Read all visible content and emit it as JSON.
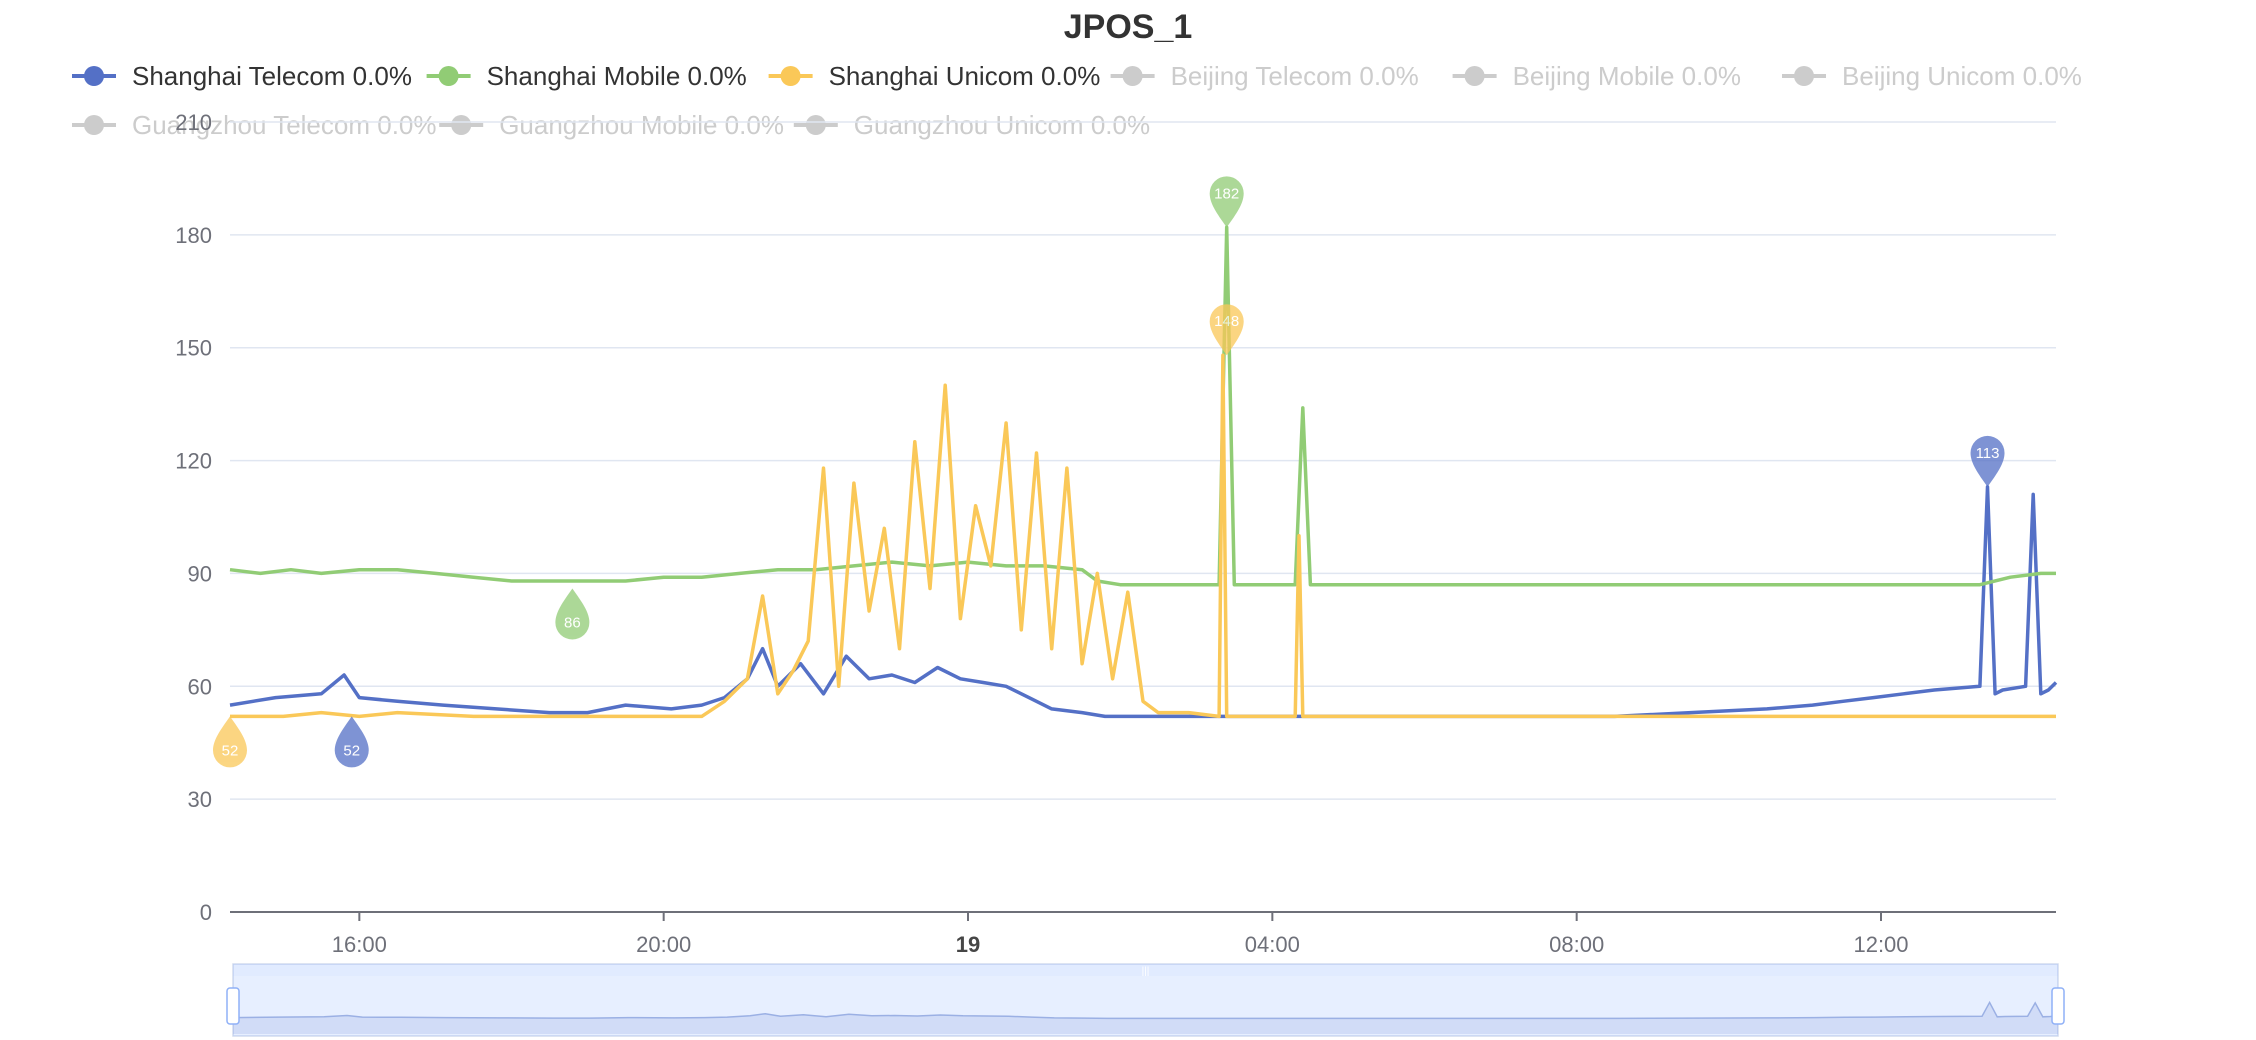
{
  "chart_data": {
    "type": "line",
    "title": "JPOS_1",
    "legend": [
      {
        "name": "Shanghai Telecom 0.0%",
        "color": "#5470c6",
        "active": true
      },
      {
        "name": "Shanghai Mobile 0.0%",
        "color": "#91cc75",
        "active": true
      },
      {
        "name": "Shanghai Unicom 0.0%",
        "color": "#fac858",
        "active": true
      },
      {
        "name": "Beijing Telecom 0.0%",
        "color": "#cccccc",
        "active": false
      },
      {
        "name": "Beijing Mobile 0.0%",
        "color": "#cccccc",
        "active": false
      },
      {
        "name": "Beijing Unicom 0.0%",
        "color": "#cccccc",
        "active": false
      },
      {
        "name": "Guangzhou Telecom 0.0%",
        "color": "#cccccc",
        "active": false
      },
      {
        "name": "Guangzhou Mobile 0.0%",
        "color": "#cccccc",
        "active": false
      },
      {
        "name": "Guangzhou Unicom 0.0%",
        "color": "#cccccc",
        "active": false
      }
    ],
    "y_axis": {
      "min": 0,
      "max": 210,
      "ticks": [
        "0",
        "30",
        "60",
        "90",
        "120",
        "150",
        "180",
        "210"
      ]
    },
    "x_axis": {
      "start_hour": 13.8,
      "end_hour": 37.8,
      "ticks": [
        {
          "hour": 15.5,
          "label": "16:00",
          "bold": false
        },
        {
          "hour": 19.5,
          "label": "20:00",
          "bold": false
        },
        {
          "hour": 23.5,
          "label": "19",
          "bold": true
        },
        {
          "hour": 27.5,
          "label": "04:00",
          "bold": false
        },
        {
          "hour": 31.5,
          "label": "08:00",
          "bold": false
        },
        {
          "hour": 35.5,
          "label": "12:00",
          "bold": false
        }
      ]
    },
    "series": [
      {
        "name": "Shanghai Telecom",
        "color": "#5470c6",
        "x": [
          13.8,
          14.4,
          15.0,
          15.3,
          15.5,
          16.0,
          16.6,
          17.3,
          18.0,
          18.5,
          19.0,
          19.6,
          20.0,
          20.3,
          20.6,
          20.8,
          21.0,
          21.3,
          21.6,
          21.9,
          22.2,
          22.5,
          22.8,
          23.1,
          23.4,
          23.7,
          24.0,
          24.3,
          24.6,
          25.0,
          25.3,
          25.6,
          26.0,
          26.6,
          27.2,
          28.0,
          29.0,
          30.0,
          31.0,
          32.0,
          33.0,
          34.0,
          34.6,
          35.0,
          35.4,
          35.8,
          36.2,
          36.8,
          36.9,
          37.0,
          37.1,
          37.4,
          37.5,
          37.6,
          37.7,
          37.8
        ],
        "y": [
          55,
          57,
          58,
          63,
          57,
          56,
          55,
          54,
          53,
          53,
          55,
          54,
          55,
          57,
          62,
          70,
          60,
          66,
          58,
          68,
          62,
          63,
          61,
          65,
          62,
          61,
          60,
          57,
          54,
          53,
          52,
          52,
          52,
          52,
          52,
          52,
          52,
          52,
          52,
          52,
          53,
          54,
          55,
          56,
          57,
          58,
          59,
          60,
          113,
          58,
          59,
          60,
          111,
          58,
          59,
          61
        ]
      },
      {
        "name": "Shanghai Mobile",
        "color": "#91cc75",
        "x": [
          13.8,
          14.2,
          14.6,
          15.0,
          15.5,
          16.0,
          16.5,
          17.0,
          17.5,
          18.0,
          18.5,
          19.0,
          19.5,
          20.0,
          20.5,
          21.0,
          21.5,
          22.0,
          22.5,
          23.0,
          23.5,
          24.0,
          24.5,
          25.0,
          25.2,
          25.5,
          26.0,
          26.8,
          26.9,
          27.0,
          27.8,
          27.9,
          28.0,
          29.0,
          30.0,
          31.0,
          32.0,
          33.0,
          34.0,
          35.0,
          36.0,
          36.8,
          37.2,
          37.6,
          37.8
        ],
        "y": [
          91,
          90,
          91,
          90,
          91,
          91,
          90,
          89,
          88,
          88,
          88,
          88,
          89,
          89,
          90,
          91,
          91,
          92,
          93,
          92,
          93,
          92,
          92,
          91,
          88,
          87,
          87,
          87,
          182,
          87,
          87,
          134,
          87,
          87,
          87,
          87,
          87,
          87,
          87,
          87,
          87,
          87,
          89,
          90,
          90
        ]
      },
      {
        "name": "Shanghai Unicom",
        "color": "#fac858",
        "x": [
          13.8,
          14.5,
          15.0,
          15.5,
          16.0,
          17.0,
          18.0,
          19.0,
          20.0,
          20.3,
          20.6,
          20.8,
          21.0,
          21.2,
          21.4,
          21.6,
          21.8,
          22.0,
          22.2,
          22.4,
          22.6,
          22.8,
          23.0,
          23.2,
          23.4,
          23.6,
          23.8,
          24.0,
          24.2,
          24.4,
          24.6,
          24.8,
          25.0,
          25.2,
          25.4,
          25.6,
          25.8,
          26.0,
          26.4,
          26.8,
          26.85,
          26.9,
          27.0,
          27.8,
          27.85,
          27.9,
          28.0,
          29.0,
          30.0,
          31.0,
          32.0,
          33.0,
          34.0,
          35.0,
          36.0,
          37.0,
          37.8
        ],
        "y": [
          52,
          52,
          53,
          52,
          53,
          52,
          52,
          52,
          52,
          56,
          62,
          84,
          58,
          64,
          72,
          118,
          60,
          114,
          80,
          102,
          70,
          125,
          86,
          140,
          78,
          108,
          92,
          130,
          75,
          122,
          70,
          118,
          66,
          90,
          62,
          85,
          56,
          53,
          53,
          52,
          148,
          52,
          52,
          52,
          100,
          52,
          52,
          52,
          52,
          52,
          52,
          52,
          52,
          52,
          52,
          52,
          52
        ]
      }
    ],
    "markers": [
      {
        "series": "Shanghai Mobile",
        "label": "182",
        "x": 26.9,
        "value": 182,
        "kind": "max"
      },
      {
        "series": "Shanghai Mobile",
        "label": "86",
        "x": 18.3,
        "value": 86,
        "kind": "min"
      },
      {
        "series": "Shanghai Unicom",
        "label": "148",
        "x": 26.9,
        "value": 148,
        "kind": "max"
      },
      {
        "series": "Shanghai Unicom",
        "label": "52",
        "x": 13.8,
        "value": 52,
        "kind": "min"
      },
      {
        "series": "Shanghai Telecom",
        "label": "113",
        "x": 36.9,
        "value": 113,
        "kind": "max"
      },
      {
        "series": "Shanghai Telecom",
        "label": "52",
        "x": 15.4,
        "value": 52,
        "kind": "min"
      }
    ],
    "grid": true,
    "legend_placement": "top",
    "data_zoom": {
      "start": 0,
      "end": 100,
      "handle_label": "|||"
    }
  }
}
